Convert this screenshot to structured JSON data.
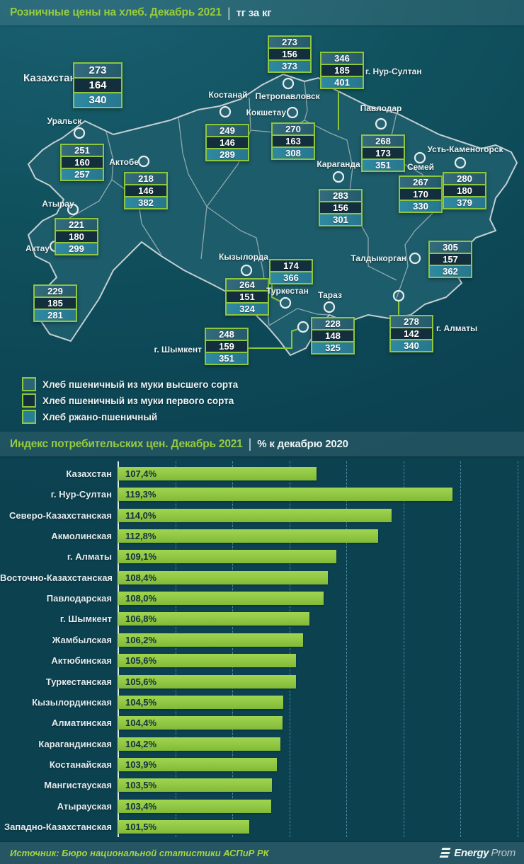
{
  "headers": {
    "prices": {
      "title": "Розничные цены на хлеб. Декабрь 2021",
      "divider": "|",
      "unit": "тг за кг"
    },
    "index": {
      "title": "Индекс потребительских цен. Декабрь 2021",
      "divider": "|",
      "unit": "% к декабрю 2020"
    }
  },
  "legend": [
    {
      "key": "premium",
      "label": "Хлеб пшеничный из муки высшего сорта",
      "color": "#2b6476"
    },
    {
      "key": "first",
      "label": "Хлеб пшеничный из муки первого сорта",
      "color": "#132e3c"
    },
    {
      "key": "rye",
      "label": "Хлеб ржано-пшеничный",
      "color": "#2a7f98"
    }
  ],
  "colors": {
    "accent_green": "#8dc63f",
    "bar_green": "#8dc63f",
    "background": "#0e4c5b",
    "land": "#1d5c6a"
  },
  "chart_data": [
    {
      "type": "table",
      "title": "Розничные цены на хлеб. Декабрь 2021",
      "unit": "тг за кг",
      "columns": [
        "Регион",
        "Хлеб пшеничный из муки высшего сорта",
        "Хлеб пшеничный из муки первого сорта",
        "Хлеб ржано-пшеничный"
      ],
      "national": {
        "id": "kazakhstan",
        "name": "Казахстан",
        "premium": 273,
        "first": 164,
        "rye": 340
      },
      "cities": [
        {
          "id": "petropavlovsk",
          "name": "Петропавловск",
          "premium": 273,
          "first": 156,
          "rye": 373
        },
        {
          "id": "nursultan",
          "name": "г. Нур-Султан",
          "premium": 346,
          "first": 185,
          "rye": 401
        },
        {
          "id": "kostanay",
          "name": "Костанай",
          "premium": 249,
          "first": 146,
          "rye": 289
        },
        {
          "id": "kokshetau",
          "name": "Кокшетау",
          "premium": 270,
          "first": 163,
          "rye": 308
        },
        {
          "id": "pavlodar",
          "name": "Павлодар",
          "premium": 268,
          "first": 173,
          "rye": 351
        },
        {
          "id": "uralsk",
          "name": "Уральск",
          "premium": 251,
          "first": 160,
          "rye": 257
        },
        {
          "id": "aktobe",
          "name": "Актобе",
          "premium": 218,
          "first": 146,
          "rye": 382
        },
        {
          "id": "karaganda",
          "name": "Караганда",
          "premium": 283,
          "first": 156,
          "rye": 301
        },
        {
          "id": "semey",
          "name": "Семей",
          "premium": 267,
          "first": 170,
          "rye": 330
        },
        {
          "id": "ustkamenogorsk",
          "name": "Усть-Каменогорск",
          "premium": 280,
          "first": 180,
          "rye": 379
        },
        {
          "id": "taldykorgan",
          "name": "Талдыкорган",
          "premium": 305,
          "first": 157,
          "rye": 362
        },
        {
          "id": "atyrau",
          "name": "Атырау",
          "premium": 221,
          "first": 180,
          "rye": 299
        },
        {
          "id": "aktau",
          "name": "Актау",
          "premium": 229,
          "first": 185,
          "rye": 281
        },
        {
          "id": "kyzylorda",
          "name": "Кызылорда",
          "premium": 264,
          "first": 151,
          "rye": 324
        },
        {
          "id": "turkestan",
          "name": "Туркестан",
          "premium": null,
          "first": 174,
          "rye": 366
        },
        {
          "id": "taraz",
          "name": "Тараз",
          "premium": 228,
          "first": 148,
          "rye": 325
        },
        {
          "id": "shymkent",
          "name": "г. Шымкент",
          "premium": 248,
          "first": 159,
          "rye": 351
        },
        {
          "id": "almaty",
          "name": "г. Алматы",
          "premium": 278,
          "first": 142,
          "rye": 340
        }
      ]
    },
    {
      "type": "bar",
      "orientation": "horizontal",
      "title": "Индекс потребительских цен. Декабрь 2021",
      "unit": "% к декабрю 2020",
      "categories": [
        "Казахстан",
        "г. Нур-Султан",
        "Северо-Казахстанская",
        "Акмолинская",
        "г. Алматы",
        "Восточно-Казахстанская",
        "Павлодарская",
        "г. Шымкент",
        "Жамбылская",
        "Актюбинская",
        "Туркестанская",
        "Кызылординская",
        "Алматинская",
        "Карагандинская",
        "Костанайская",
        "Мангистауская",
        "Атырауская",
        "Западно-Казахстанская"
      ],
      "values": [
        107.4,
        119.3,
        114.0,
        112.8,
        109.1,
        108.4,
        108.0,
        106.8,
        106.2,
        105.6,
        105.6,
        104.5,
        104.4,
        104.2,
        103.9,
        103.5,
        103.4,
        101.5
      ],
      "labels": [
        "107,4%",
        "119,3%",
        "114,0%",
        "112,8%",
        "109,1%",
        "108,4%",
        "108,0%",
        "106,8%",
        "106,2%",
        "105,6%",
        "105,6%",
        "104,5%",
        "104,4%",
        "104,2%",
        "103,9%",
        "103,5%",
        "103,4%",
        "101,5%"
      ],
      "xlim": [
        90,
        125
      ],
      "gridline_values": [
        95,
        100,
        105,
        110,
        115,
        120,
        125
      ],
      "grid": "dashed-vertical",
      "legend_position": "none",
      "bar_color": "#8dc63f"
    }
  ],
  "footer": {
    "source": "Источник: Бюро национальной статистики АСПиР РК",
    "logo_energy": "Energy",
    "logo_prom": "Prom"
  }
}
